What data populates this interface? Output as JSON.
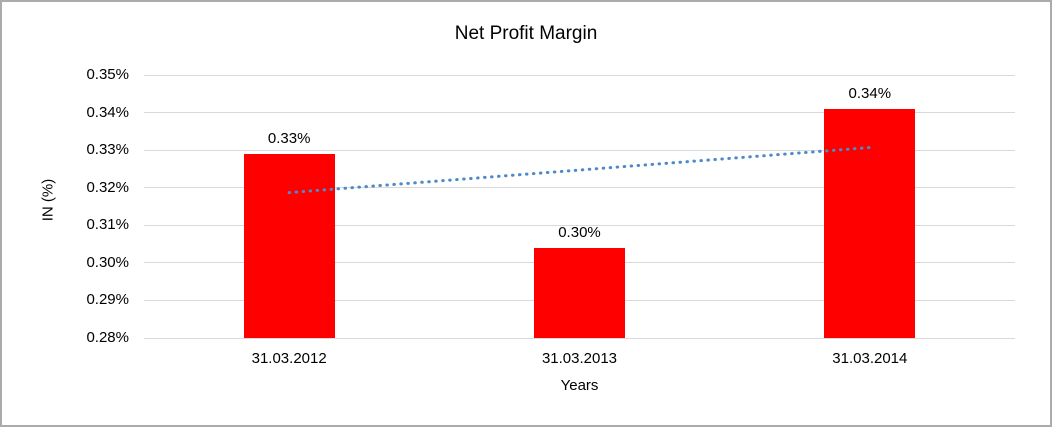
{
  "chart_data": {
    "type": "bar",
    "title": "Net Profit Margin",
    "xlabel": "Years",
    "ylabel": "IN (%)",
    "categories": [
      "31.03.2012",
      "31.03.2013",
      "31.03.2014"
    ],
    "values": [
      0.329,
      0.304,
      0.341
    ],
    "bar_labels": [
      "0.33%",
      "0.30%",
      "0.34%"
    ],
    "ylim": [
      0.28,
      0.35
    ],
    "ytick_step": 0.01,
    "ytick_labels": [
      "0.35%",
      "0.34%",
      "0.33%",
      "0.32%",
      "0.31%",
      "0.30%",
      "0.29%",
      "0.28%"
    ],
    "grid": true,
    "legend": "none",
    "bar_color": "#ff0000",
    "gridline_color": "#d9d9d9",
    "text_color": "#000000",
    "trendline": {
      "style": "dotted",
      "color": "#4e8ac8",
      "start_value": 0.3187,
      "end_value": 0.3307
    }
  }
}
